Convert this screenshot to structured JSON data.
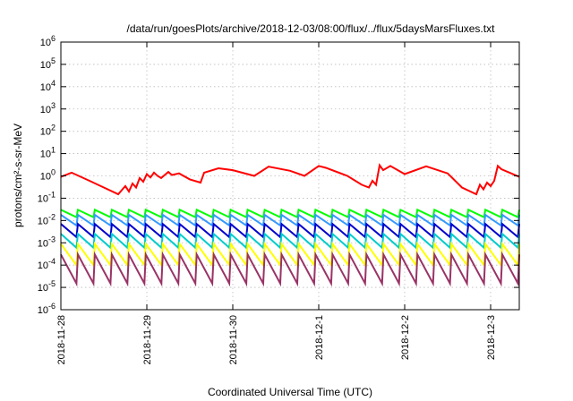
{
  "chart_data": {
    "type": "line",
    "title": "/data/run/goesPlots/archive/2018-12-03/08:00/flux/../flux/5daysMarsFluxes.txt",
    "xlabel": "Coordinated Universal Time (UTC)",
    "ylabel": "protons/cm²-s-sr-MeV",
    "yscale": "log",
    "ylim": [
      1e-06,
      1000000.0
    ],
    "y_tick_exponents": [
      -6,
      -5,
      -4,
      -3,
      -2,
      -1,
      0,
      1,
      2,
      3,
      4,
      5,
      6
    ],
    "xlim": [
      "2018-11-28T00:00",
      "2018-12-03T08:00"
    ],
    "x_ticks": [
      "2018-11-28",
      "2018-11-29",
      "2018-11-30",
      "2018-12-1",
      "2018-12-2",
      "2018-12-3"
    ],
    "grid": true,
    "legend": "none",
    "series": [
      {
        "color": "#ff0000",
        "sawtooth": false,
        "x": [
          "2018-11-28T00:00",
          "2018-11-28T03:00",
          "2018-11-28T08:00",
          "2018-11-28T12:00",
          "2018-11-28T16:00",
          "2018-11-28T18:00",
          "2018-11-28T19:00",
          "2018-11-28T20:00",
          "2018-11-28T21:00",
          "2018-11-28T22:00",
          "2018-11-28T23:00",
          "2018-11-29T00:00",
          "2018-11-29T01:00",
          "2018-11-29T02:00",
          "2018-11-29T03:00",
          "2018-11-29T04:00",
          "2018-11-29T06:00",
          "2018-11-29T07:00",
          "2018-11-29T09:00",
          "2018-11-29T12:00",
          "2018-11-29T15:00",
          "2018-11-29T16:00",
          "2018-11-29T20:00",
          "2018-11-30T00:00",
          "2018-11-30T06:00",
          "2018-11-30T10:00",
          "2018-11-30T16:00",
          "2018-11-30T20:00",
          "2018-12-01T00:00",
          "2018-12-01T02:00",
          "2018-12-01T08:00",
          "2018-12-01T12:00",
          "2018-12-01T14:00",
          "2018-12-01T15:00",
          "2018-12-01T16:00",
          "2018-12-01T17:00",
          "2018-12-01T18:00",
          "2018-12-01T20:00",
          "2018-12-02T00:00",
          "2018-12-02T06:00",
          "2018-12-02T12:00",
          "2018-12-02T16:00",
          "2018-12-02T20:00",
          "2018-12-02T21:00",
          "2018-12-02T22:00",
          "2018-12-02T23:00",
          "2018-12-03T00:00",
          "2018-12-03T01:00",
          "2018-12-03T02:00",
          "2018-12-03T03:00",
          "2018-12-03T08:00"
        ],
        "y": [
          0.9,
          1.4,
          0.6,
          0.3,
          0.15,
          0.35,
          0.2,
          0.45,
          0.3,
          0.8,
          0.55,
          1.2,
          0.85,
          1.4,
          1.0,
          0.8,
          1.5,
          1.1,
          1.3,
          0.7,
          0.5,
          1.4,
          2.2,
          1.8,
          1.0,
          2.6,
          1.7,
          1.0,
          2.8,
          2.3,
          1.0,
          0.4,
          0.3,
          0.6,
          0.4,
          3.0,
          1.8,
          2.8,
          1.2,
          2.7,
          1.3,
          0.3,
          0.15,
          0.4,
          0.25,
          0.5,
          0.35,
          0.6,
          2.8,
          2.0,
          0.9
        ]
      },
      {
        "color": "#00ff00",
        "sawtooth": true,
        "teeth_per_day": 5,
        "peak": 0.03,
        "trough": 0.014
      },
      {
        "color": "#3399ff",
        "sawtooth": true,
        "teeth_per_day": 5,
        "peak": 0.018,
        "trough": 0.006
      },
      {
        "color": "#0000cc",
        "sawtooth": true,
        "teeth_per_day": 5,
        "peak": 0.007,
        "trough": 0.0018
      },
      {
        "color": "#00cccc",
        "sawtooth": true,
        "teeth_per_day": 5,
        "peak": 0.0025,
        "trough": 0.0006
      },
      {
        "color": "#ffff00",
        "sawtooth": true,
        "teeth_per_day": 5,
        "peak": 0.0009,
        "trough": 0.0001
      },
      {
        "color": "#993366",
        "sawtooth": true,
        "teeth_per_day": 5,
        "peak": 0.0003,
        "trough": 1.5e-05
      }
    ]
  }
}
